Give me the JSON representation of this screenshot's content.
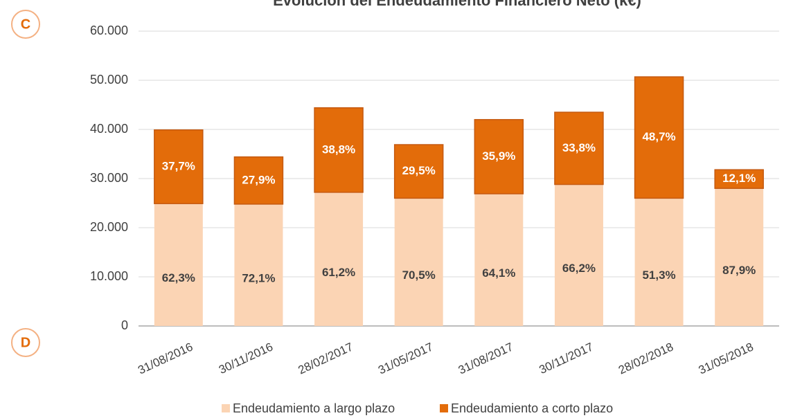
{
  "chart_data": {
    "type": "stacked_bar",
    "title": "Evolución del Endeudamiento Financiero Neto (k€)",
    "badges": [
      "C",
      "D"
    ],
    "categories": [
      "31/08/2016",
      "30/11/2016",
      "28/02/2017",
      "31/05/2017",
      "31/08/2017",
      "30/11/2017",
      "28/02/2018",
      "31/05/2018"
    ],
    "series": [
      {
        "name": "Endeudamiento a largo plazo",
        "color": "#fbd4b4",
        "label_color": "#404040",
        "values": [
          24900,
          24800,
          27200,
          26000,
          26900,
          28800,
          26000,
          28000
        ],
        "percent_labels": [
          "62,3%",
          "72,1%",
          "61,2%",
          "70,5%",
          "64,1%",
          "66,2%",
          "51,3%",
          "87,9%"
        ]
      },
      {
        "name": "Endeudamiento a corto plazo",
        "color": "#e36c0a",
        "label_color": "#ffffff",
        "values": [
          15000,
          9600,
          17200,
          10900,
          15100,
          14700,
          24700,
          3800
        ],
        "percent_labels": [
          "37,7%",
          "27,9%",
          "38,8%",
          "29,5%",
          "35,9%",
          "33,8%",
          "48,7%",
          "12,1%"
        ]
      }
    ],
    "ylim": [
      0,
      60000
    ],
    "yticks": [
      0,
      {
        "value": 10000,
        "label": "10.000"
      },
      {
        "value": 20000,
        "label": "20.000"
      },
      {
        "value": 30000,
        "label": "30.000"
      },
      {
        "value": 40000,
        "label": "40.000"
      },
      {
        "value": 50000,
        "label": "50.000"
      },
      {
        "value": 60000,
        "label": "60.000"
      }
    ],
    "grid": true,
    "legend": "bottom"
  }
}
